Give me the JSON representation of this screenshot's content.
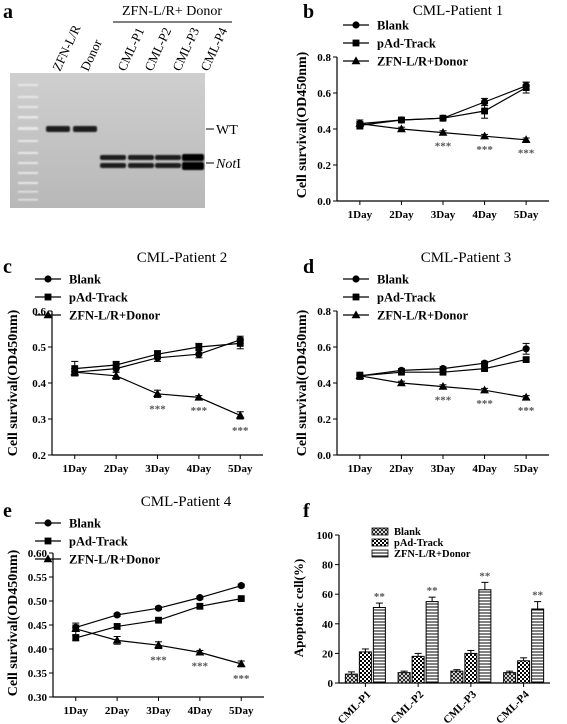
{
  "figure": {
    "panel_letters": [
      "a",
      "b",
      "c",
      "d",
      "e",
      "f"
    ]
  },
  "gel": {
    "header": "ZFN-L/R+ Donor",
    "lane_labels": [
      "ZFN-L/R",
      "Donor",
      "CML-P1",
      "CML-P2",
      "CML-P3",
      "CML-P4"
    ],
    "band_labels": [
      "WT",
      "NotI"
    ],
    "band_label_prefix": "Not",
    "band_label_suffix": "I"
  },
  "colors": {
    "line": "#000000",
    "significance": "#555555",
    "background": "#ffffff"
  },
  "chart_data": [
    {
      "panel": "b",
      "type": "line",
      "title": "CML-Patient 1",
      "xlabel": "",
      "ylabel": "Cell survival(OD450nm)",
      "categories": [
        "1Day",
        "2Day",
        "3Day",
        "4Day",
        "5Day"
      ],
      "ylim": [
        0.0,
        0.8
      ],
      "yticks": [
        "0.0",
        "0.2",
        "0.4",
        "0.6",
        "0.8"
      ],
      "legend_placement": "top-left",
      "series": [
        {
          "name": "Blank",
          "marker": "circle",
          "values": [
            0.43,
            0.45,
            0.46,
            0.55,
            0.64
          ],
          "errors": [
            0.02,
            0.01,
            0.01,
            0.02,
            0.02
          ]
        },
        {
          "name": "pAd-Track",
          "marker": "square",
          "values": [
            0.42,
            0.45,
            0.46,
            0.5,
            0.63
          ],
          "errors": [
            0.02,
            0.01,
            0.01,
            0.04,
            0.03
          ]
        },
        {
          "name": "ZFN-L/R+Donor",
          "marker": "triangle",
          "values": [
            0.43,
            0.4,
            0.38,
            0.36,
            0.34
          ],
          "errors": [
            0.01,
            0.01,
            0.01,
            0.01,
            0.01
          ]
        }
      ],
      "annotations": [
        "",
        "",
        "***",
        "***",
        "***"
      ]
    },
    {
      "panel": "c",
      "type": "line",
      "title": "CML-Patient 2",
      "xlabel": "",
      "ylabel": "Cell survival(OD450nm)",
      "categories": [
        "1Day",
        "2Day",
        "3Day",
        "4Day",
        "5Day"
      ],
      "ylim": [
        0.2,
        0.6
      ],
      "yticks": [
        "0.2",
        "0.3",
        "0.4",
        "0.5",
        "0.6"
      ],
      "legend_placement": "top-left",
      "series": [
        {
          "name": "Blank",
          "marker": "circle",
          "values": [
            0.43,
            0.44,
            0.47,
            0.48,
            0.52
          ],
          "errors": [
            0.01,
            0.01,
            0.01,
            0.01,
            0.01
          ]
        },
        {
          "name": "pAd-Track",
          "marker": "square",
          "values": [
            0.44,
            0.45,
            0.48,
            0.5,
            0.51
          ],
          "errors": [
            0.02,
            0.01,
            0.01,
            0.01,
            0.015
          ]
        },
        {
          "name": "ZFN-L/R+Donor",
          "marker": "triangle",
          "values": [
            0.43,
            0.42,
            0.37,
            0.36,
            0.31
          ],
          "errors": [
            0.01,
            0.01,
            0.01,
            0.005,
            0.01
          ]
        }
      ],
      "annotations": [
        "",
        "",
        "***",
        "***",
        "***"
      ]
    },
    {
      "panel": "d",
      "type": "line",
      "title": "CML-Patient 3",
      "xlabel": "",
      "ylabel": "Cell survival(OD450nm)",
      "categories": [
        "1Day",
        "2Day",
        "3Day",
        "4Day",
        "5Day"
      ],
      "ylim": [
        0.0,
        0.8
      ],
      "yticks": [
        "0.0",
        "0.2",
        "0.4",
        "0.6",
        "0.8"
      ],
      "legend_placement": "top-left",
      "series": [
        {
          "name": "Blank",
          "marker": "circle",
          "values": [
            0.44,
            0.47,
            0.48,
            0.51,
            0.59
          ],
          "errors": [
            0.02,
            0.01,
            0.01,
            0.01,
            0.03
          ]
        },
        {
          "name": "pAd-Track",
          "marker": "square",
          "values": [
            0.44,
            0.46,
            0.46,
            0.48,
            0.53
          ],
          "errors": [
            0.01,
            0.01,
            0.01,
            0.01,
            0.01
          ]
        },
        {
          "name": "ZFN-L/R+Donor",
          "marker": "triangle",
          "values": [
            0.44,
            0.4,
            0.38,
            0.36,
            0.32
          ],
          "errors": [
            0.01,
            0.01,
            0.01,
            0.01,
            0.01
          ]
        }
      ],
      "annotations": [
        "",
        "",
        "***",
        "***",
        "***"
      ]
    },
    {
      "panel": "e",
      "type": "line",
      "title": "CML-Patient 4",
      "xlabel": "",
      "ylabel": "Cell survival(OD450nm)",
      "categories": [
        "1Day",
        "2Day",
        "3Day",
        "4Day",
        "5Day"
      ],
      "ylim": [
        0.3,
        0.6
      ],
      "yticks": [
        "0.30",
        "0.35",
        "0.40",
        "0.45",
        "0.50",
        "0.55",
        "0.60"
      ],
      "legend_placement": "top-left",
      "series": [
        {
          "name": "Blank",
          "marker": "circle",
          "values": [
            0.445,
            0.471,
            0.485,
            0.507,
            0.532
          ],
          "errors": [
            0.005,
            0.003,
            0.003,
            0.003,
            0.003
          ]
        },
        {
          "name": "pAd-Track",
          "marker": "square",
          "values": [
            0.423,
            0.447,
            0.46,
            0.489,
            0.505
          ],
          "errors": [
            0.005,
            0.005,
            0.003,
            0.005,
            0.003
          ]
        },
        {
          "name": "ZFN-L/R+Donor",
          "marker": "triangle",
          "values": [
            0.442,
            0.418,
            0.408,
            0.393,
            0.369
          ],
          "errors": [
            0.012,
            0.008,
            0.007,
            0.004,
            0.006
          ]
        }
      ],
      "annotations": [
        "",
        "",
        "***",
        "***",
        "***"
      ]
    },
    {
      "panel": "f",
      "type": "bar",
      "title": "",
      "xlabel": "",
      "ylabel": "Apoptotic cell(%)",
      "categories": [
        "CML-P1",
        "CML-P2",
        "CML-P3",
        "CML-P4"
      ],
      "ylim": [
        0,
        100
      ],
      "yticks": [
        "0",
        "20",
        "40",
        "60",
        "80",
        "100"
      ],
      "legend_placement": "top-left",
      "series": [
        {
          "name": "Blank",
          "pattern": "cross-hatch",
          "values": [
            6,
            7,
            8,
            7
          ],
          "errors": [
            1.5,
            1,
            1,
            1
          ]
        },
        {
          "name": "pAd-Track",
          "pattern": "checker",
          "values": [
            21,
            18,
            20,
            15
          ],
          "errors": [
            2,
            2,
            2,
            2
          ]
        },
        {
          "name": "ZFN-L/R+Donor",
          "pattern": "horizontal-lines",
          "values": [
            51,
            55,
            63,
            50
          ],
          "errors": [
            3,
            3,
            5,
            5
          ]
        }
      ],
      "annotations": [
        "**",
        "**",
        "**",
        "**"
      ]
    }
  ]
}
